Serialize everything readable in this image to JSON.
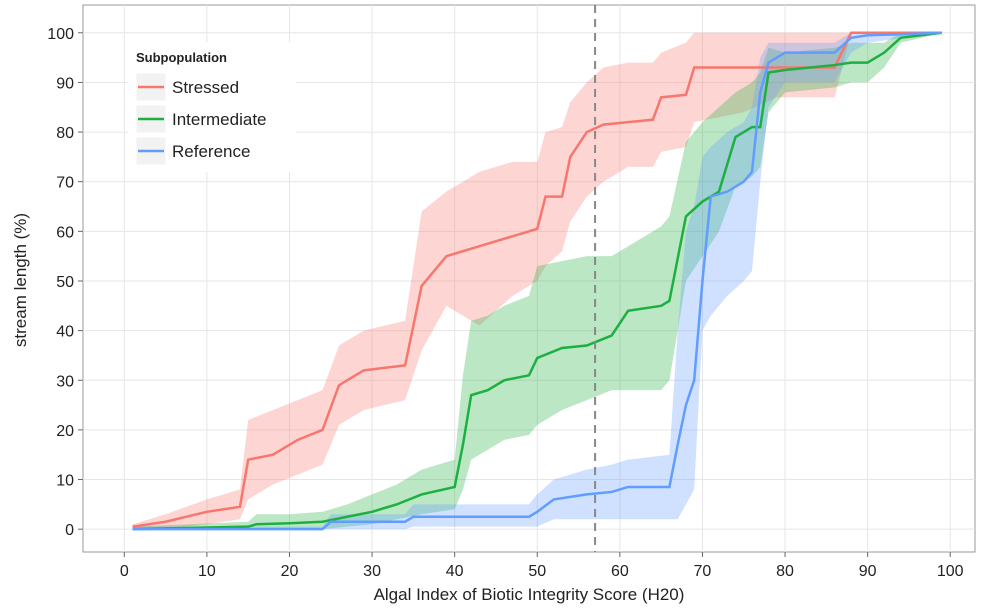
{
  "chart_data": {
    "type": "ribbon-line",
    "xlabel": "Algal Index of Biotic Integrity Score (H20)",
    "ylabel": "stream length (%)",
    "legend_title": "Subpopulation",
    "legend_position": "top-left",
    "grid": true,
    "xlim": [
      -5,
      103
    ],
    "ylim": [
      -4.6,
      105.6
    ],
    "xticks": [
      0,
      10,
      20,
      30,
      40,
      50,
      60,
      70,
      80,
      90,
      100
    ],
    "yticks": [
      0,
      10,
      20,
      30,
      40,
      50,
      60,
      70,
      80,
      90,
      100
    ],
    "vline": 57,
    "series": [
      {
        "name": "Stressed",
        "color": "#F8766D",
        "x": [
          1,
          5,
          10,
          14,
          15,
          18,
          21,
          24,
          26,
          29,
          34,
          36,
          39,
          43,
          47,
          50,
          51,
          53,
          54,
          56,
          58,
          61,
          64,
          65,
          68,
          69,
          75,
          79,
          86,
          88,
          99
        ],
        "values": [
          0.5,
          1.5,
          3.5,
          4.5,
          14,
          15,
          18,
          20,
          29,
          32,
          33,
          49,
          55,
          57,
          59,
          60.5,
          67,
          67,
          75,
          80,
          81.5,
          82,
          82.5,
          87,
          87.5,
          93,
          93,
          93,
          93,
          100,
          100
        ],
        "lower": [
          0,
          0,
          1,
          2,
          6,
          9,
          11,
          13,
          21,
          24,
          26,
          36,
          45,
          41,
          47,
          50,
          53,
          56,
          62,
          67,
          70,
          73,
          73,
          76,
          77,
          82,
          84,
          87,
          87,
          100,
          100
        ],
        "upper": [
          1,
          3,
          6,
          8,
          22,
          24,
          26,
          28,
          37,
          40,
          42,
          64,
          68,
          72,
          74,
          74,
          80,
          81,
          86,
          90,
          93,
          94,
          94,
          96,
          98,
          100,
          100,
          100,
          100,
          100,
          100
        ]
      },
      {
        "name": "Intermediate",
        "color": "#1DB040",
        "x": [
          1,
          15,
          16,
          20,
          24,
          27,
          30,
          33,
          36,
          40,
          41,
          42,
          44,
          46,
          49,
          50,
          53,
          56,
          59,
          61,
          65,
          66,
          68,
          70,
          72,
          74,
          76,
          77,
          78,
          80,
          86,
          88,
          90,
          92,
          94,
          99
        ],
        "values": [
          0,
          0.5,
          1,
          1.2,
          1.5,
          2.5,
          3.5,
          5,
          7,
          8.5,
          17,
          27,
          28,
          30,
          31,
          34.5,
          36.5,
          37,
          39,
          44,
          45,
          46,
          63,
          66,
          68,
          79,
          81,
          81,
          92,
          92.5,
          93.5,
          94,
          94,
          96,
          99,
          100
        ],
        "lower": [
          0,
          0,
          0,
          0,
          0,
          0.5,
          1,
          2,
          3,
          4,
          8,
          14,
          16,
          18,
          19,
          21,
          24,
          26,
          28,
          28,
          28,
          30,
          50,
          55,
          60,
          69,
          71,
          73,
          84,
          88,
          89,
          90,
          90,
          93,
          98,
          100
        ],
        "upper": [
          0.5,
          1.5,
          3,
          3,
          3.5,
          5,
          7,
          9,
          12,
          14,
          31,
          42,
          43,
          45,
          47,
          53,
          54,
          55,
          55,
          57,
          61,
          63,
          78,
          82,
          85,
          88,
          90,
          92,
          97,
          96,
          97,
          98,
          98,
          98,
          100,
          100
        ]
      },
      {
        "name": "Reference",
        "color": "#619CFF",
        "x": [
          1,
          24,
          25,
          34,
          35,
          49,
          50,
          52,
          56,
          59,
          61,
          66,
          67,
          68,
          69,
          70,
          71,
          73,
          75,
          76,
          77,
          78,
          80,
          86,
          88,
          90,
          99
        ],
        "values": [
          0,
          0,
          1.5,
          1.5,
          2.5,
          2.5,
          3.5,
          6,
          7,
          7.5,
          8.5,
          8.5,
          17,
          25,
          30,
          50,
          67,
          68,
          70,
          72,
          88,
          94,
          96,
          96,
          99,
          99.5,
          100
        ],
        "lower": [
          0,
          0,
          0,
          0,
          0.5,
          0.5,
          0.5,
          2,
          2,
          2,
          2,
          2,
          2,
          5,
          8,
          40,
          43,
          47,
          50,
          52,
          70,
          85,
          90,
          90,
          96,
          98,
          100
        ],
        "upper": [
          0.5,
          0.5,
          3,
          3,
          5,
          5,
          7,
          10,
          12,
          13,
          14,
          15,
          40,
          60,
          65,
          75,
          77,
          80,
          82,
          85,
          95,
          98,
          98,
          98,
          100,
          100,
          100
        ]
      }
    ]
  }
}
